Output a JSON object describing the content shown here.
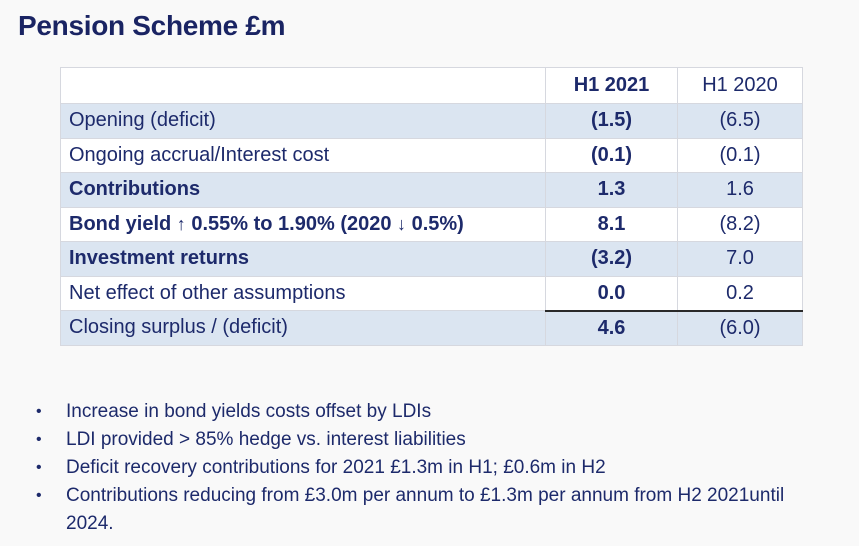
{
  "title": "Pension Scheme £m",
  "table": {
    "headers": [
      "",
      "H1 2021",
      "H1 2020"
    ],
    "rows": [
      {
        "label": "Opening (deficit)",
        "h1_2021": "(1.5)",
        "h1_2020": "(6.5)",
        "bold_label": false
      },
      {
        "label": "Ongoing accrual/Interest cost",
        "h1_2021": "(0.1)",
        "h1_2020": "(0.1)",
        "bold_label": false
      },
      {
        "label": "Contributions",
        "h1_2021": "1.3",
        "h1_2020": "1.6",
        "bold_label": true
      },
      {
        "label_parts": [
          "Bond yield ",
          "↑",
          " 0.55% to 1.90% (2020 ",
          "↓",
          " 0.5%)"
        ],
        "h1_2021": "8.1",
        "h1_2020": "(8.2)",
        "bold_label": true
      },
      {
        "label": "Investment returns",
        "h1_2021": "(3.2)",
        "h1_2020": "7.0",
        "bold_label": true
      },
      {
        "label": "Net effect of other assumptions",
        "h1_2021": "0.0",
        "h1_2020": "0.2",
        "bold_label": false
      },
      {
        "label": "Closing surplus / (deficit)",
        "h1_2021": "4.6",
        "h1_2020": "(6.0)",
        "bold_label": false
      }
    ]
  },
  "bullets": [
    "Increase in bond yields costs offset by LDIs",
    "LDI provided > 85% hedge vs. interest liabilities",
    "Deficit recovery contributions for 2021 £1.3m in H1; £0.6m in H2",
    "Contributions reducing from £3.0m per annum to £1.3m per annum from H2 2021until 2024."
  ],
  "bullet_glyph": "•",
  "colors": {
    "text": "#1d2a6b",
    "title": "#1a2463",
    "row_shade": "#dbe5f1"
  }
}
